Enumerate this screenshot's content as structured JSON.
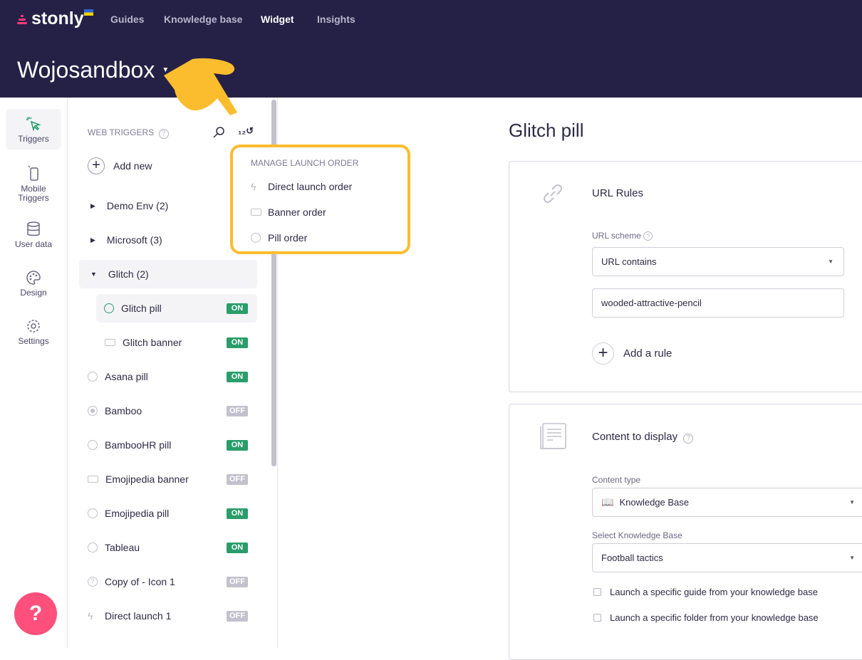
{
  "header": {
    "brand": "stonly",
    "nav": [
      "Guides",
      "Knowledge base",
      "Widget",
      "Insights"
    ],
    "active_nav": "Widget",
    "workspace": "Wojosandbox"
  },
  "rail": [
    {
      "label": "Triggers",
      "icon": "cursor-click-icon"
    },
    {
      "label": "Mobile Triggers",
      "icon": "mobile-icon"
    },
    {
      "label": "User data",
      "icon": "database-icon"
    },
    {
      "label": "Design",
      "icon": "palette-icon"
    },
    {
      "label": "Settings",
      "icon": "gear-icon"
    }
  ],
  "list": {
    "heading": "WEB TRIGGERS",
    "add_new": "Add new",
    "folders": [
      {
        "label": "Demo Env (2)"
      },
      {
        "label": "Microsoft (3)"
      },
      {
        "label": "Glitch (2)"
      }
    ],
    "children": [
      {
        "label": "Glitch pill",
        "status": "ON"
      },
      {
        "label": "Glitch banner",
        "status": "ON"
      }
    ],
    "items": [
      {
        "label": "Asana pill",
        "status": "ON",
        "icon": "pill-icon"
      },
      {
        "label": "Bamboo",
        "status": "OFF",
        "icon": "target-icon"
      },
      {
        "label": "BambooHR pill",
        "status": "ON",
        "icon": "pill-icon"
      },
      {
        "label": "Emojipedia banner",
        "status": "OFF",
        "icon": "banner-icon"
      },
      {
        "label": "Emojipedia pill",
        "status": "ON",
        "icon": "pill-icon"
      },
      {
        "label": "Tableau",
        "status": "ON",
        "icon": "pill-icon"
      },
      {
        "label": "Copy of - Icon 1",
        "status": "OFF",
        "icon": "question-icon"
      },
      {
        "label": "Direct launch 1",
        "status": "OFF",
        "icon": "lightning-icon"
      }
    ]
  },
  "popup": {
    "heading": "MANAGE LAUNCH ORDER",
    "items": [
      "Direct launch order",
      "Banner order",
      "Pill order"
    ]
  },
  "main": {
    "title": "Glitch pill",
    "url_rules": {
      "title": "URL Rules",
      "scheme_label": "URL scheme",
      "scheme_value": "URL contains",
      "url_value": "wooded-attractive-pencil",
      "add_rule": "Add a rule"
    },
    "content": {
      "title": "Content to display",
      "type_label": "Content type",
      "type_value": "Knowledge Base",
      "kb_label": "Select Knowledge Base",
      "kb_value": "Football tactics",
      "check1": "Launch a specific guide from your knowledge base",
      "check2": "Launch a specific folder from your knowledge base"
    }
  },
  "help": "?",
  "colors": {
    "header": "#252146",
    "accent": "#2a9d6a",
    "highlight": "#fbbc2e",
    "help": "#ff4f7b"
  }
}
